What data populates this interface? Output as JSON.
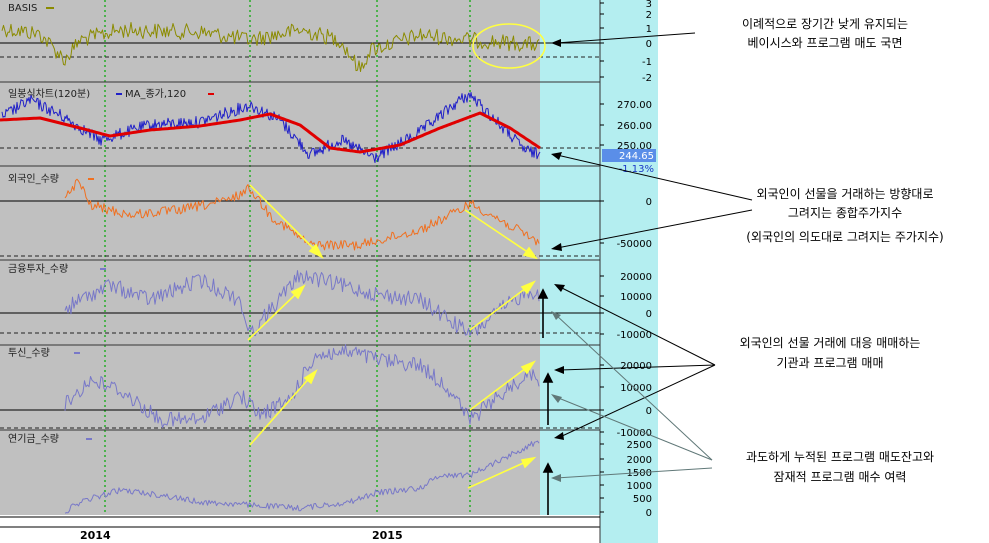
{
  "colors": {
    "plot_bg": "#c0c0c0",
    "cyan_bg": "#b4eef0",
    "basis": "#8b8b00",
    "price": "#2020c8",
    "ma": "#e00000",
    "foreign": "#f07020",
    "flow": "#7878c8",
    "grid_green": "#00aa00",
    "highlight": "#ffff40",
    "badge": "#5a8ee8"
  },
  "chart_data": [
    {
      "type": "line",
      "panel": "basis",
      "series": [
        {
          "name": "BASIS"
        }
      ],
      "title": "BASIS",
      "y_ticks": [
        "3",
        "2",
        "1",
        "0",
        "-1",
        "-2"
      ],
      "ylim": [
        -2.5,
        3.2
      ]
    },
    {
      "type": "line",
      "panel": "price",
      "series": [
        {
          "name": "일봉식차트(120분)"
        },
        {
          "name": "MA_종가,120"
        }
      ],
      "title": "일봉식차트(120분)",
      "legend_ma": "MA_종가,120",
      "y_ticks": [
        "270.00",
        "260.00",
        "250.00"
      ],
      "ylim": [
        236,
        282
      ],
      "last_value": "244.65",
      "last_change": "-1.13%"
    },
    {
      "type": "line",
      "panel": "foreign",
      "series": [
        {
          "name": "외국인_수량"
        }
      ],
      "title": "외국인_수량",
      "y_ticks": [
        "0",
        "-50000"
      ],
      "ylim": [
        -65000,
        30000
      ]
    },
    {
      "type": "line",
      "panel": "financial",
      "series": [
        {
          "name": "금융투자_수량"
        }
      ],
      "title": "금융투자_수량",
      "y_ticks": [
        "20000",
        "10000",
        "0",
        "-10000"
      ],
      "ylim": [
        -14000,
        28000
      ]
    },
    {
      "type": "line",
      "panel": "trust",
      "series": [
        {
          "name": "투신_수량"
        }
      ],
      "title": "투신_수량",
      "y_ticks": [
        "20000",
        "10000",
        "0",
        "-10000"
      ],
      "ylim": [
        -14000,
        28000
      ]
    },
    {
      "type": "line",
      "panel": "pension",
      "series": [
        {
          "name": "연기금_수량"
        }
      ],
      "title": "연기금_수량",
      "y_ticks": [
        "2500",
        "2000",
        "1500",
        "1000",
        "500",
        "0"
      ],
      "ylim": [
        -200,
        2700
      ]
    }
  ],
  "x_labels": [
    "2014",
    "2015"
  ],
  "annotations": [
    {
      "lines": [
        "이례적으로 장기간 낮게 유지되는",
        "베이시스와 프로그램 매도 국면"
      ]
    },
    {
      "lines": [
        "외국인이  선물을 거래하는 방향대로",
        "그려지는 종합주가지수",
        "(외국인의 의도대로 그려지는 주가지수)"
      ]
    },
    {
      "lines": [
        "외국인의 선물 거래에 대응 매매하는",
        "기관과 프로그램 매매"
      ]
    },
    {
      "lines": [
        "과도하게 누적된 프로그램 매도잔고와",
        "잠재적 프로그램 매수 여력"
      ]
    }
  ]
}
